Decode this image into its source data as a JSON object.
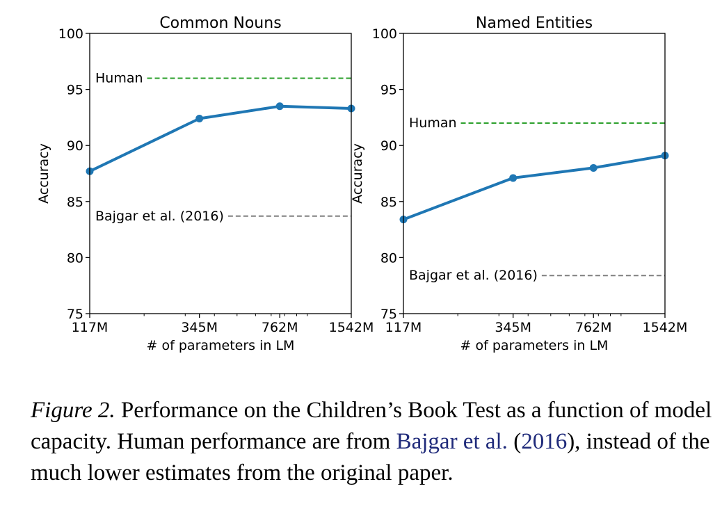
{
  "chart_data": [
    {
      "type": "line",
      "title": "Common Nouns",
      "xlabel": "# of parameters in LM",
      "ylabel": "Accuracy",
      "x_scale": "log",
      "x": [
        117,
        345,
        762,
        1542
      ],
      "x_ticklabels": [
        "117M",
        "345M",
        "762M",
        "1542M"
      ],
      "ylim": [
        75,
        100
      ],
      "y_ticks": [
        75,
        80,
        85,
        90,
        95,
        100
      ],
      "series": [
        {
          "values": [
            87.7,
            92.4,
            93.5,
            93.3
          ],
          "color": "#1f77b4"
        }
      ],
      "reference_lines": [
        {
          "label": "Human",
          "value": 96.0,
          "color": "#2ca02c",
          "style": "dashed"
        },
        {
          "label": "Bajgar et al. (2016)",
          "value": 83.7,
          "color": "#7f7f7f",
          "style": "dashed"
        }
      ]
    },
    {
      "type": "line",
      "title": "Named Entities",
      "xlabel": "# of parameters in LM",
      "ylabel": "Accuracy",
      "x_scale": "log",
      "x": [
        117,
        345,
        762,
        1542
      ],
      "x_ticklabels": [
        "117M",
        "345M",
        "762M",
        "1542M"
      ],
      "ylim": [
        75,
        100
      ],
      "y_ticks": [
        75,
        80,
        85,
        90,
        95,
        100
      ],
      "series": [
        {
          "values": [
            83.4,
            87.1,
            88.0,
            89.1
          ],
          "color": "#1f77b4"
        }
      ],
      "reference_lines": [
        {
          "label": "Human",
          "value": 92.0,
          "color": "#2ca02c",
          "style": "dashed"
        },
        {
          "label": "Bajgar et al. (2016)",
          "value": 78.4,
          "color": "#7f7f7f",
          "style": "dashed"
        }
      ]
    }
  ],
  "caption": {
    "figure_label": "Figure 2.",
    "text_1": " Performance on the Children’s Book Test as a function of model capacity. Human performance are from ",
    "citation_authors": "Bajgar et al.",
    "citation_open": " (",
    "citation_year": "2016",
    "citation_close": "),",
    "text_2": " instead of the much lower estimates from the original paper."
  }
}
